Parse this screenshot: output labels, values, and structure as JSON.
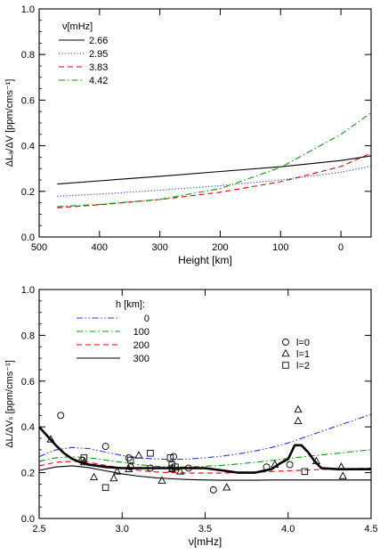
{
  "chart_data": [
    {
      "type": "line",
      "xlabel": "Height [km]",
      "ylabel": "ΔLₐ/ΔV [ppm/cms⁻¹]",
      "xlim": [
        500,
        -50
      ],
      "ylim": [
        0.0,
        1.0
      ],
      "xticks": [
        500,
        400,
        300,
        200,
        100,
        0
      ],
      "yticks": [
        0.0,
        0.2,
        0.4,
        0.6,
        0.8,
        1.0
      ],
      "xtick_labels": [
        "500",
        "400",
        "300",
        "200",
        "100",
        "0"
      ],
      "ytick_labels": [
        "0.0",
        "0.2",
        "0.4",
        "0.6",
        "0.8",
        "1.0"
      ],
      "grid": false,
      "legend_title": "ν[mHz]",
      "legend_position": "top-left",
      "series": [
        {
          "name": "2.66",
          "color": "#000000",
          "dash": "solid",
          "x": [
            470,
            400,
            300,
            200,
            100,
            0,
            -50
          ],
          "y": [
            0.232,
            0.246,
            0.266,
            0.287,
            0.308,
            0.335,
            0.356
          ]
        },
        {
          "name": "2.95",
          "color": "#1f3fe0",
          "dash": "dotted",
          "x": [
            470,
            400,
            300,
            200,
            100,
            0,
            -50
          ],
          "y": [
            0.178,
            0.188,
            0.205,
            0.225,
            0.25,
            0.284,
            0.31
          ]
        },
        {
          "name": "3.83",
          "color": "#e00000",
          "dash": "dashed",
          "x": [
            470,
            400,
            300,
            200,
            100,
            0,
            -50
          ],
          "y": [
            0.128,
            0.141,
            0.164,
            0.196,
            0.242,
            0.309,
            0.368
          ]
        },
        {
          "name": "4.42",
          "color": "#0a9a0a",
          "dash": "dashdot",
          "x": [
            470,
            400,
            300,
            200,
            100,
            0,
            -50
          ],
          "y": [
            0.133,
            0.143,
            0.165,
            0.212,
            0.305,
            0.45,
            0.545
          ]
        }
      ]
    },
    {
      "type": "line",
      "xlabel": "ν[mHz]",
      "ylabel": "ΔL/ΔVₛ [ppm/cms⁻¹]",
      "xlim": [
        2.5,
        4.5
      ],
      "ylim": [
        0.0,
        1.0
      ],
      "xticks": [
        2.5,
        3.0,
        3.5,
        4.0,
        4.5
      ],
      "yticks": [
        0.0,
        0.2,
        0.4,
        0.6,
        0.8,
        1.0
      ],
      "xtick_labels": [
        "2.5",
        "3.0",
        "3.5",
        "4.0",
        "4.5"
      ],
      "ytick_labels": [
        "0.0",
        "0.2",
        "0.4",
        "0.6",
        "0.8",
        "1.0"
      ],
      "grid": false,
      "legend_title": "h [km]:",
      "legend_position": "top-left",
      "series": [
        {
          "name": "0",
          "color": "#1f3fe0",
          "dash": "dashdotdot",
          "x": [
            2.5,
            2.6,
            2.7,
            2.8,
            2.9,
            3.0,
            3.1,
            3.2,
            3.3,
            3.4,
            3.5,
            3.6,
            3.7,
            3.8,
            3.9,
            4.0,
            4.1,
            4.2,
            4.3,
            4.4,
            4.5
          ],
          "y": [
            0.27,
            0.3,
            0.31,
            0.305,
            0.29,
            0.275,
            0.265,
            0.26,
            0.258,
            0.26,
            0.265,
            0.272,
            0.282,
            0.295,
            0.31,
            0.33,
            0.355,
            0.38,
            0.405,
            0.43,
            0.455
          ]
        },
        {
          "name": "100",
          "color": "#0a9a0a",
          "dash": "dashdot",
          "x": [
            2.5,
            2.6,
            2.7,
            2.8,
            2.9,
            3.0,
            3.1,
            3.2,
            3.3,
            3.4,
            3.5,
            3.6,
            3.7,
            3.8,
            3.9,
            4.0,
            4.1,
            4.2,
            4.3,
            4.4,
            4.5
          ],
          "y": [
            0.25,
            0.265,
            0.27,
            0.265,
            0.255,
            0.245,
            0.235,
            0.228,
            0.225,
            0.225,
            0.228,
            0.232,
            0.238,
            0.245,
            0.253,
            0.262,
            0.27,
            0.278,
            0.285,
            0.293,
            0.3
          ]
        },
        {
          "name": "200",
          "color": "#e00000",
          "dash": "dashed",
          "x": [
            2.5,
            2.6,
            2.7,
            2.8,
            2.9,
            3.0,
            3.1,
            3.2,
            3.3,
            3.4,
            3.5,
            3.6,
            3.7,
            3.8,
            3.9,
            4.0,
            4.1,
            4.2,
            4.3,
            4.4,
            4.5
          ],
          "y": [
            0.23,
            0.245,
            0.25,
            0.245,
            0.232,
            0.22,
            0.21,
            0.203,
            0.2,
            0.198,
            0.198,
            0.198,
            0.2,
            0.202,
            0.205,
            0.208,
            0.211,
            0.214,
            0.216,
            0.218,
            0.22
          ]
        },
        {
          "name": "300",
          "color": "#000000",
          "dash": "solid",
          "x": [
            2.5,
            2.6,
            2.7,
            2.8,
            2.9,
            3.0,
            3.1,
            3.2,
            3.3,
            3.4,
            3.5,
            3.6,
            3.7,
            3.8,
            3.9,
            4.0,
            4.1,
            4.2,
            4.3,
            4.4,
            4.5
          ],
          "y": [
            0.21,
            0.225,
            0.23,
            0.222,
            0.208,
            0.195,
            0.185,
            0.178,
            0.173,
            0.17,
            0.168,
            0.167,
            0.167,
            0.167,
            0.168,
            0.168,
            0.168,
            0.168,
            0.168,
            0.168,
            0.168
          ]
        },
        {
          "name": "",
          "color": "#000000",
          "dash": "thick",
          "x": [
            2.5,
            2.55,
            2.6,
            2.65,
            2.7,
            2.75,
            2.8,
            2.9,
            3.0,
            3.1,
            3.2,
            3.3,
            3.4,
            3.5,
            3.6,
            3.7,
            3.8,
            3.9,
            3.95,
            4.0,
            4.04,
            4.08,
            4.12,
            4.16,
            4.2,
            4.3,
            4.4,
            4.5
          ],
          "y": [
            0.4,
            0.36,
            0.32,
            0.285,
            0.26,
            0.245,
            0.235,
            0.225,
            0.22,
            0.22,
            0.22,
            0.22,
            0.22,
            0.22,
            0.21,
            0.2,
            0.2,
            0.215,
            0.24,
            0.26,
            0.32,
            0.32,
            0.29,
            0.25,
            0.22,
            0.215,
            0.215,
            0.215
          ]
        }
      ],
      "markers": [
        {
          "name": "l=0",
          "symbol": "circle",
          "points": [
            [
              2.63,
              0.45
            ],
            [
              2.76,
              0.255
            ],
            [
              2.9,
              0.315
            ],
            [
              3.04,
              0.265
            ],
            [
              3.05,
              0.225
            ],
            [
              3.17,
              0.22
            ],
            [
              3.3,
              0.22
            ],
            [
              3.31,
              0.27
            ],
            [
              3.4,
              0.22
            ],
            [
              3.55,
              0.125
            ],
            [
              3.87,
              0.225
            ],
            [
              4.01,
              0.235
            ]
          ]
        },
        {
          "name": "l=1",
          "symbol": "triangle",
          "points": [
            [
              2.57,
              0.345
            ],
            [
              2.77,
              0.245
            ],
            [
              2.83,
              0.18
            ],
            [
              2.95,
              0.175
            ],
            [
              2.97,
              0.205
            ],
            [
              3.04,
              0.215
            ],
            [
              3.1,
              0.275
            ],
            [
              3.24,
              0.165
            ],
            [
              3.3,
              0.215
            ],
            [
              3.35,
              0.205
            ],
            [
              3.63,
              0.135
            ],
            [
              3.92,
              0.235
            ],
            [
              4.06,
              0.475
            ],
            [
              4.06,
              0.425
            ],
            [
              4.17,
              0.25
            ],
            [
              4.32,
              0.225
            ],
            [
              4.33,
              0.185
            ]
          ]
        },
        {
          "name": "l=2",
          "symbol": "square",
          "points": [
            [
              2.77,
              0.265
            ],
            [
              2.9,
              0.135
            ],
            [
              3.05,
              0.255
            ],
            [
              3.17,
              0.285
            ],
            [
              3.29,
              0.265
            ],
            [
              3.3,
              0.235
            ],
            [
              3.32,
              0.225
            ],
            [
              4.1,
              0.205
            ]
          ]
        }
      ]
    }
  ]
}
